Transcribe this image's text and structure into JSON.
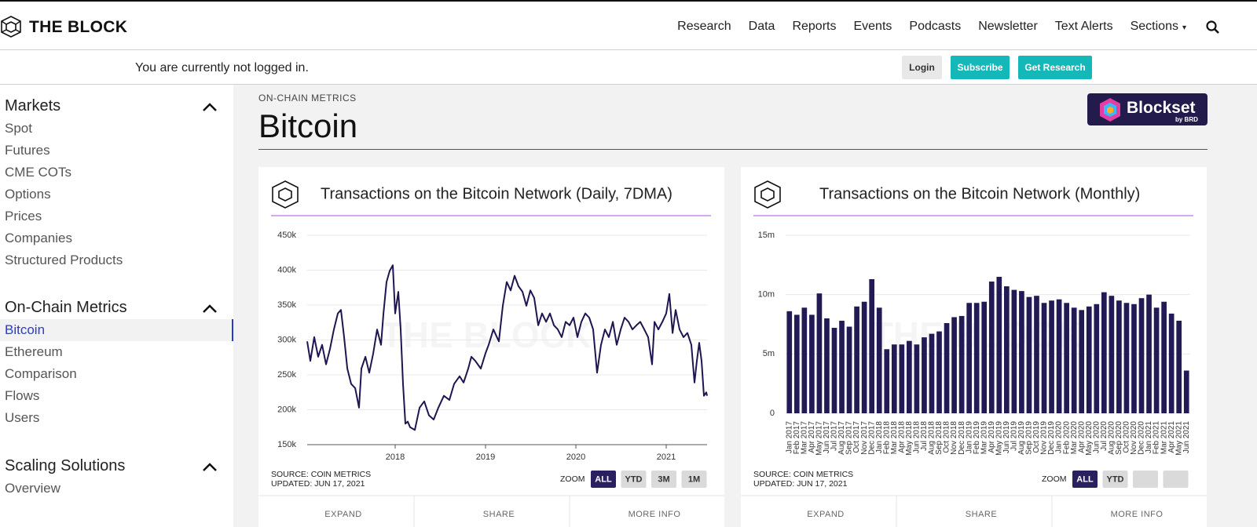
{
  "header": {
    "logo": "THE BLOCK",
    "nav": [
      "Research",
      "Data",
      "Reports",
      "Events",
      "Podcasts",
      "Newsletter",
      "Text Alerts",
      "Sections"
    ]
  },
  "login_bar": {
    "message": "You are currently not logged in.",
    "buttons": [
      "Login",
      "Subscribe",
      "Get Research"
    ]
  },
  "sidebar": {
    "sections": [
      {
        "title": "Markets",
        "items": [
          "Spot",
          "Futures",
          "CME COTs",
          "Options",
          "Prices",
          "Companies",
          "Structured Products"
        ]
      },
      {
        "title": "On-Chain Metrics",
        "items": [
          "Bitcoin",
          "Ethereum",
          "Comparison",
          "Flows",
          "Users"
        ]
      },
      {
        "title": "Scaling Solutions",
        "items": [
          "Overview"
        ]
      }
    ]
  },
  "page": {
    "kicker": "ON-CHAIN METRICS",
    "title": "Bitcoin",
    "badge": "Blockset",
    "badge_sub": "by BRD"
  },
  "chart_data": [
    {
      "type": "line",
      "title": "Transactions on the Bitcoin Network (Daily, 7DMA)",
      "watermark": "THE BLOCK",
      "color": "#1e1650",
      "grid": true,
      "x": [
        2017.026,
        2017.061,
        2017.104,
        2017.148,
        2017.191,
        2017.235,
        2017.278,
        2017.322,
        2017.365,
        2017.4,
        2017.435,
        2017.47,
        2017.513,
        2017.557,
        2017.6,
        2017.626,
        2017.67,
        2017.713,
        2017.757,
        2017.8,
        2017.843,
        2017.87,
        2017.904,
        2017.939,
        2017.974,
        2018.0,
        2018.035,
        2018.061,
        2018.087,
        2018.113,
        2018.139,
        2018.165,
        2018.217,
        2018.27,
        2018.322,
        2018.374,
        2018.426,
        2018.478,
        2018.539,
        2018.6,
        2018.652,
        2018.713,
        2018.757,
        2018.809,
        2018.843,
        2018.887,
        2018.948,
        2019.0,
        2019.035,
        2019.087,
        2019.148,
        2019.191,
        2019.235,
        2019.278,
        2019.322,
        2019.365,
        2019.409,
        2019.452,
        2019.496,
        2019.539,
        2019.583,
        2019.626,
        2019.67,
        2019.713,
        2019.757,
        2019.8,
        2019.843,
        2019.887,
        2019.93,
        2019.974,
        2020.017,
        2020.061,
        2020.104,
        2020.148,
        2020.191,
        2020.235,
        2020.278,
        2020.322,
        2020.365,
        2020.409,
        2020.452,
        2020.496,
        2020.539,
        2020.583,
        2020.626,
        2020.67,
        2020.713,
        2020.757,
        2020.8,
        2020.843,
        2020.87,
        2020.913,
        2020.957,
        2021.0,
        2021.035,
        2021.07,
        2021.104,
        2021.148,
        2021.191,
        2021.235,
        2021.278,
        2021.313,
        2021.339,
        2021.365,
        2021.391,
        2021.417,
        2021.443,
        2021.452
      ],
      "values": [
        298000,
        270000,
        304000,
        276000,
        293000,
        265000,
        287000,
        315000,
        338000,
        343000,
        304000,
        259000,
        237000,
        231000,
        203000,
        259000,
        276000,
        253000,
        281000,
        315000,
        293000,
        338000,
        383000,
        399000,
        407000,
        338000,
        369000,
        315000,
        237000,
        180000,
        183000,
        175000,
        171000,
        203000,
        212000,
        192000,
        186000,
        203000,
        220000,
        214000,
        237000,
        248000,
        239000,
        259000,
        276000,
        270000,
        259000,
        281000,
        293000,
        315000,
        298000,
        349000,
        383000,
        371000,
        392000,
        377000,
        369000,
        349000,
        371000,
        360000,
        321000,
        338000,
        326000,
        338000,
        321000,
        315000,
        304000,
        326000,
        321000,
        332000,
        304000,
        326000,
        338000,
        332000,
        315000,
        253000,
        293000,
        315000,
        304000,
        326000,
        293000,
        315000,
        332000,
        326000,
        315000,
        321000,
        326000,
        315000,
        304000,
        265000,
        326000,
        315000,
        326000,
        338000,
        366000,
        310000,
        343000,
        315000,
        304000,
        310000,
        293000,
        239000,
        270000,
        296000,
        270000,
        220000,
        225000,
        220000
      ],
      "xlim": [
        2017.026,
        2021.452
      ],
      "xticks": [
        2018,
        2019,
        2020,
        2021
      ],
      "ylim": [
        150000,
        450000
      ],
      "yticks": [
        {
          "value": 150000,
          "label": "150k"
        },
        {
          "value": 200000,
          "label": "200k"
        },
        {
          "value": 250000,
          "label": "250k"
        },
        {
          "value": 300000,
          "label": "300k"
        },
        {
          "value": 350000,
          "label": "350k"
        },
        {
          "value": 400000,
          "label": "400k"
        },
        {
          "value": 450000,
          "label": "450k"
        }
      ],
      "source": "SOURCE: COIN METRICS",
      "updated": "UPDATED: JUN 17, 2021",
      "zoom_label": "ZOOM",
      "zoom_buttons": [
        "ALL",
        "YTD",
        "3M",
        "1M"
      ],
      "actions": [
        "EXPAND",
        "SHARE",
        "MORE INFO"
      ]
    },
    {
      "type": "bar",
      "title": "Transactions on the Bitcoin Network (Monthly)",
      "watermark": "THE BLOCK",
      "color": "#221a55",
      "grid": true,
      "categories": [
        "Jan 2017",
        "Feb 2017",
        "Mar 2017",
        "Apr 2017",
        "May 2017",
        "Jun 2017",
        "Jul 2017",
        "Aug 2017",
        "Sep 2017",
        "Oct 2017",
        "Nov 2017",
        "Dec 2017",
        "Jan 2018",
        "Feb 2018",
        "Mar 2018",
        "Apr 2018",
        "May 2018",
        "Jun 2018",
        "Jul 2018",
        "Aug 2018",
        "Sep 2018",
        "Oct 2018",
        "Nov 2018",
        "Dec 2018",
        "Jan 2019",
        "Feb 2019",
        "Mar 2019",
        "Apr 2019",
        "May 2019",
        "Jun 2019",
        "Jul 2019",
        "Aug 2019",
        "Sep 2019",
        "Oct 2019",
        "Nov 2019",
        "Dec 2019",
        "Jan 2020",
        "Feb 2020",
        "Mar 2020",
        "Apr 2020",
        "May 2020",
        "Jun 2020",
        "Jul 2020",
        "Aug 2020",
        "Sep 2020",
        "Oct 2020",
        "Nov 2020",
        "Dec 2020",
        "Jan 2021",
        "Feb 2021",
        "Mar 2021",
        "Apr 2021",
        "May 2021",
        "Jun 2021"
      ],
      "values": [
        8600000,
        8300000,
        8900000,
        8300000,
        10100000,
        8000000,
        7200000,
        7800000,
        7300000,
        9000000,
        9400000,
        11300000,
        8900000,
        5400000,
        5800000,
        5800000,
        6100000,
        5800000,
        6400000,
        6700000,
        6900000,
        7600000,
        8100000,
        8200000,
        9300000,
        9300000,
        9400000,
        11100000,
        11500000,
        10700000,
        10400000,
        10300000,
        9800000,
        9900000,
        9300000,
        9500000,
        9600000,
        9300000,
        8900000,
        8700000,
        9000000,
        9200000,
        10200000,
        9900000,
        9500000,
        9300000,
        9200000,
        9700000,
        10000000,
        8900000,
        9400000,
        8400000,
        7800000,
        3600000
      ],
      "ylim": [
        0,
        15000000
      ],
      "yticks": [
        0,
        {
          "value": 5000000,
          "label": "5m"
        },
        {
          "value": 10000000,
          "label": "10m"
        },
        {
          "value": 15000000,
          "label": "15m"
        }
      ],
      "source": "SOURCE: COIN METRICS",
      "updated": "UPDATED: JUN 17, 2021",
      "zoom_label": "ZOOM",
      "zoom_buttons": [
        "ALL",
        "YTD"
      ],
      "actions": [
        "EXPAND",
        "SHARE",
        "MORE INFO"
      ]
    }
  ]
}
